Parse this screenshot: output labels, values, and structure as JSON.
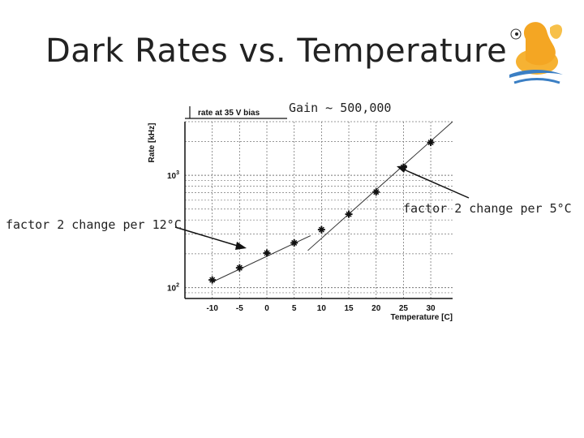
{
  "slide": {
    "title": "Dark Rates vs. Temperature",
    "gain_label": "Gain ~ 500,000",
    "annotation_left": "factor 2 change per 12°C",
    "annotation_right": "factor 2 change per 5°C",
    "logo_icon": "cartoon-bird-logo-icon"
  },
  "chart_data": {
    "type": "scatter",
    "title": "rate at 35 V bias",
    "xlabel": "Temperature [C]",
    "ylabel": "Rate [kHz]",
    "x_ticks": [
      -10,
      -5,
      0,
      5,
      10,
      15,
      20,
      25,
      30
    ],
    "xlim": [
      -15,
      34
    ],
    "y_scale": "log",
    "ylim": [
      80,
      3000
    ],
    "y_tick_labels": [
      {
        "value": 100,
        "base": "10",
        "exp": "2"
      },
      {
        "value": 1000,
        "base": "10",
        "exp": "3"
      }
    ],
    "grid": true,
    "series": [
      {
        "x": [
          -10,
          -5,
          0,
          5,
          10,
          15,
          20,
          25,
          30
        ],
        "y": [
          117,
          150,
          203,
          250,
          328,
          450,
          710,
          1180,
          1960
        ]
      }
    ],
    "fit_lines": [
      {
        "x": [
          -10,
          8
        ],
        "y": [
          112,
          290
        ]
      },
      {
        "x": [
          7.5,
          34
        ],
        "y": [
          214,
          3000
        ]
      }
    ],
    "colors": {
      "marker": "#111111",
      "line": "#333333",
      "grid": "#777777"
    }
  }
}
